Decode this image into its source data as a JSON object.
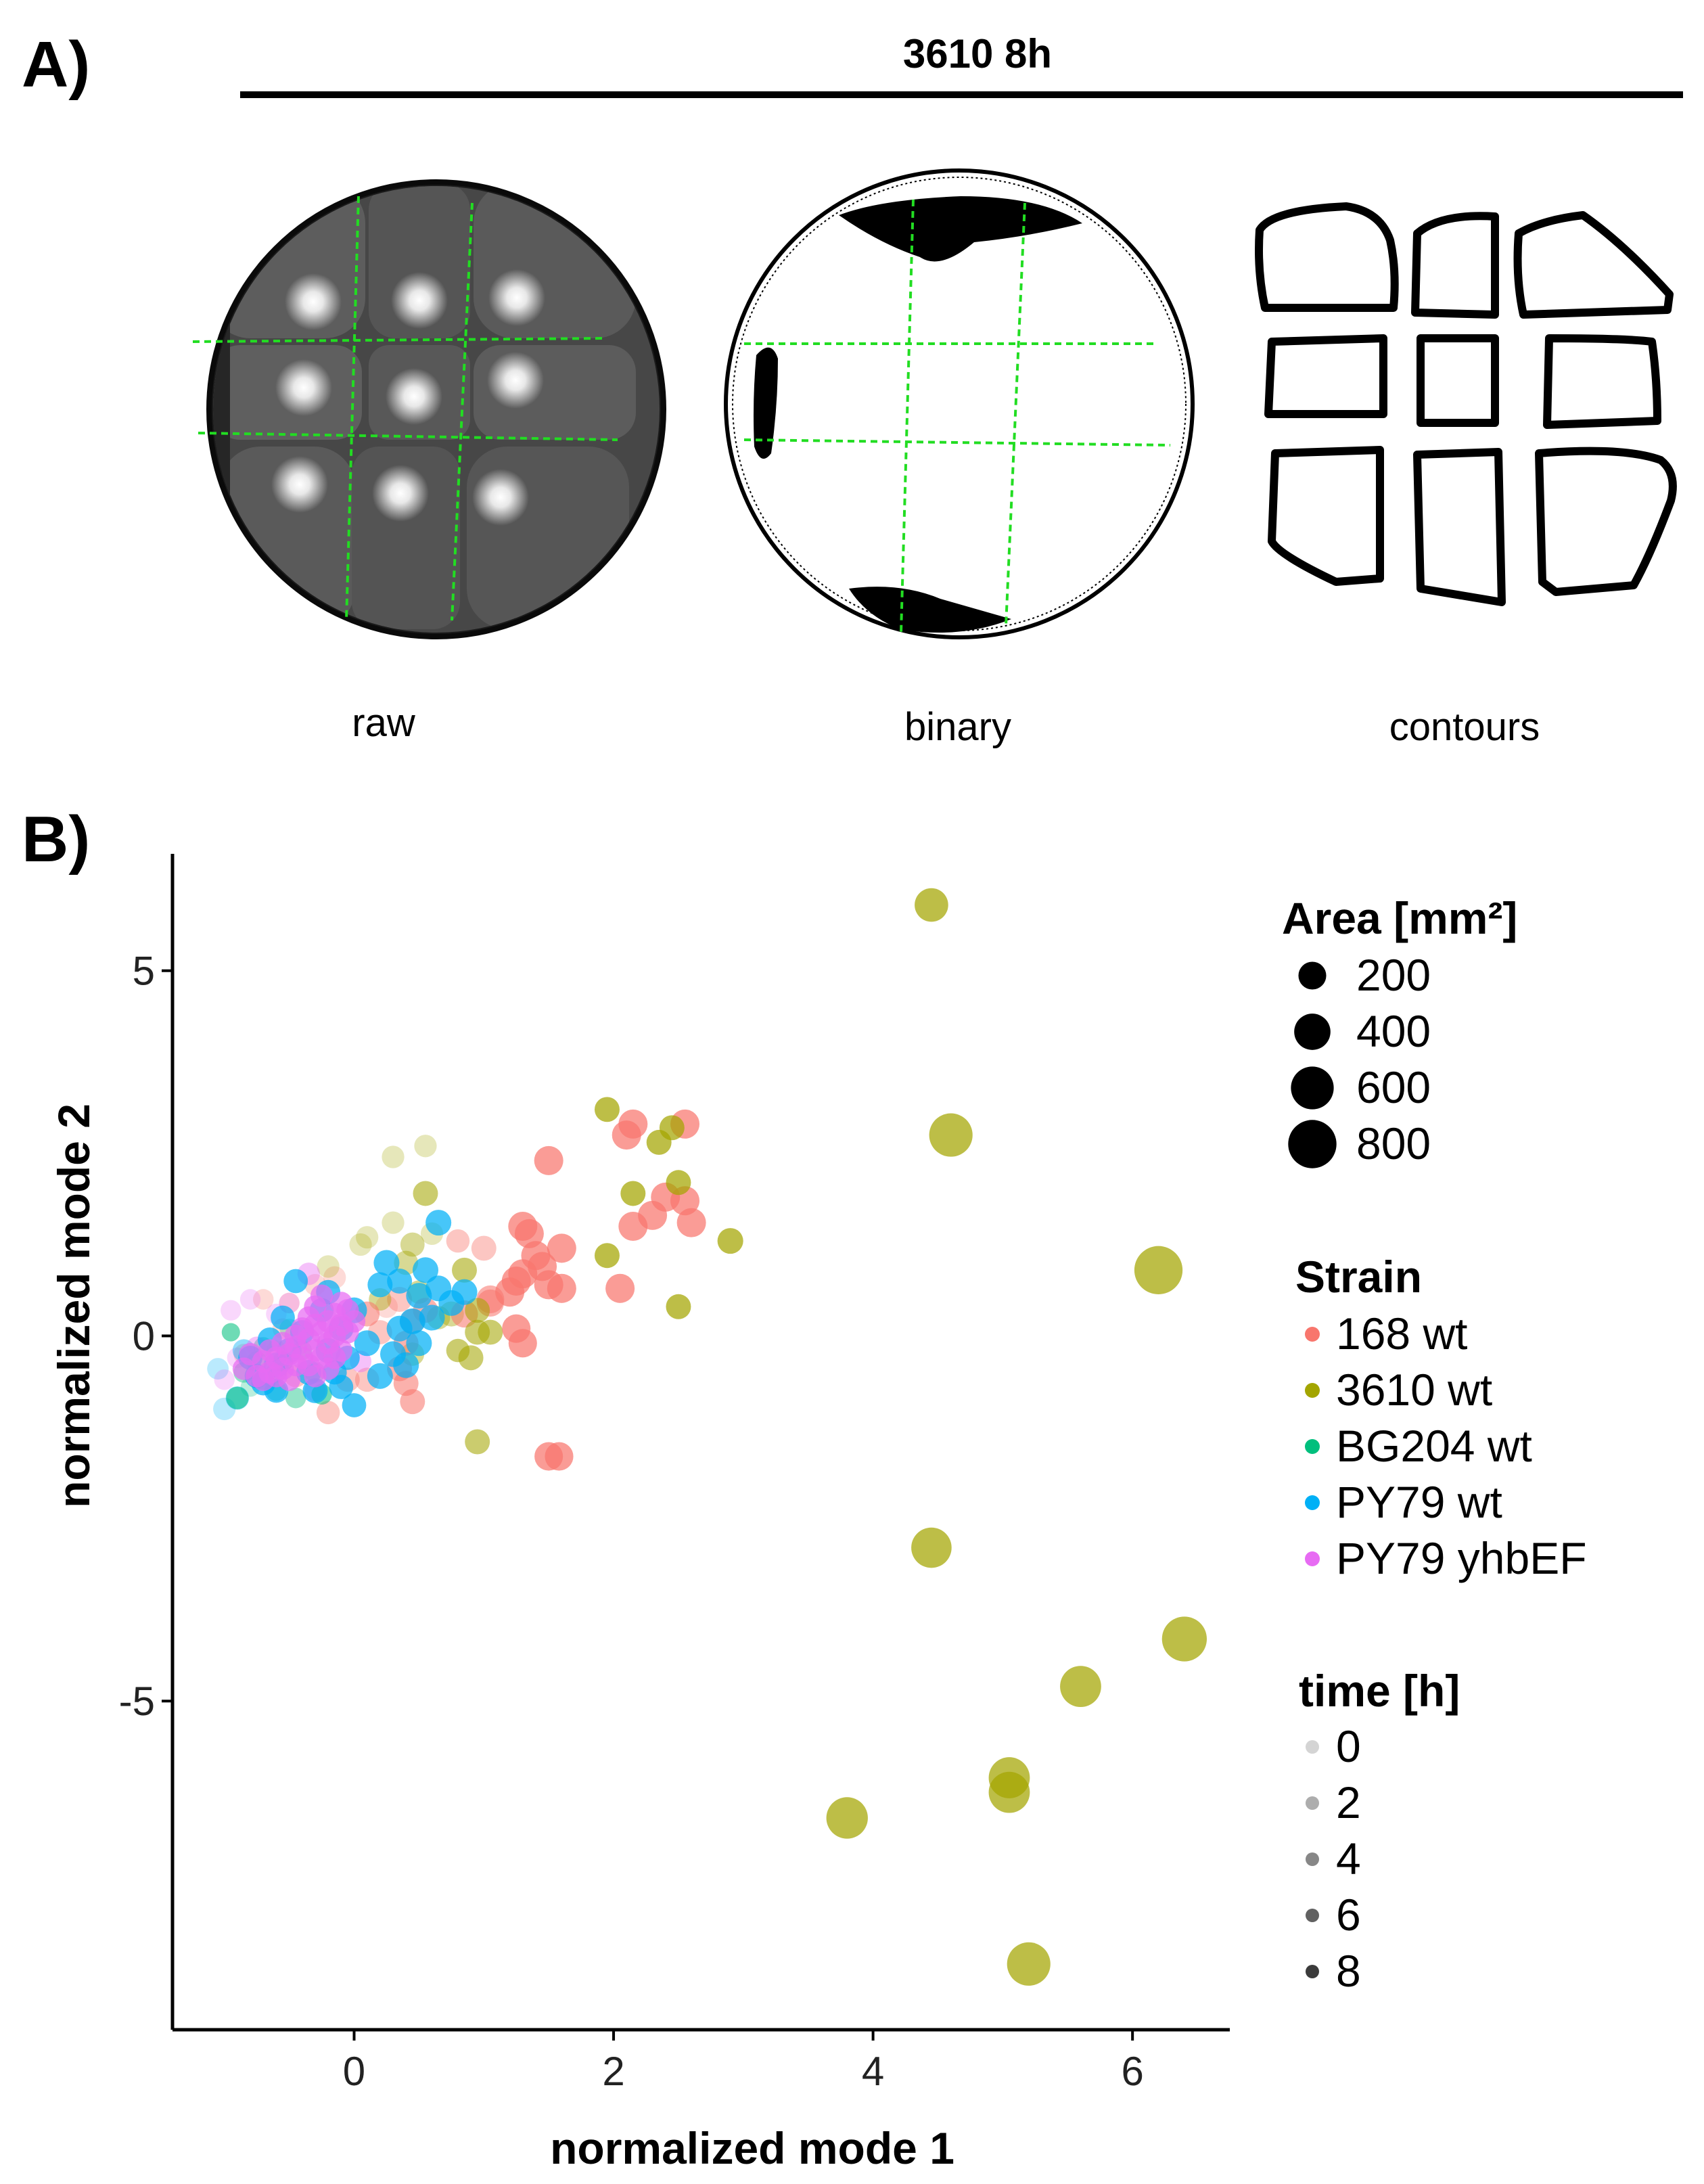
{
  "panel_a": {
    "letter": "A)",
    "header": "3610 8h",
    "image_labels": [
      "raw",
      "binary",
      "contours"
    ],
    "grid_line_color": "#22dd22"
  },
  "panel_b": {
    "letter": "B)"
  },
  "chart_data": {
    "type": "scatter",
    "xlabel": "normalized mode 1",
    "ylabel": "normalized mode 2",
    "xlim": [
      -1.4,
      6.75
    ],
    "ylim": [
      -9.5,
      6.6
    ],
    "xticks": [
      0,
      2,
      4,
      6
    ],
    "xtick_labels": [
      "0",
      "2",
      "4",
      "6"
    ],
    "yticks": [
      -5,
      0,
      5
    ],
    "ytick_labels": [
      "-5",
      "0",
      "5"
    ],
    "grid": false,
    "legend_position": "right",
    "legend_size": {
      "title": "Area [mm²]",
      "values": [
        200,
        400,
        600,
        800
      ],
      "labels": [
        "200",
        "400",
        "600",
        "800"
      ]
    },
    "legend_color": {
      "title": "Strain",
      "labels": [
        "168 wt",
        "3610 wt",
        "BG204 wt",
        "PY79 wt",
        "PY79 yhbEF"
      ],
      "colors": [
        "#F8766D",
        "#A3A500",
        "#00BF7D",
        "#00B0F6",
        "#E76BF3"
      ]
    },
    "legend_alpha": {
      "title": "time [h]",
      "values": [
        0,
        2,
        4,
        6,
        8
      ],
      "labels": [
        "0",
        "2",
        "4",
        "6",
        "8"
      ]
    },
    "series": [
      {
        "name": "168 wt",
        "color": "#F8766D",
        "points": [
          [
            2.1,
            2.75,
            170,
            8
          ],
          [
            2.15,
            2.9,
            170,
            8
          ],
          [
            2.55,
            2.9,
            170,
            8
          ],
          [
            1.5,
            2.4,
            170,
            8
          ],
          [
            2.4,
            1.9,
            170,
            8
          ],
          [
            2.55,
            1.85,
            170,
            8
          ],
          [
            2.3,
            1.65,
            170,
            8
          ],
          [
            2.6,
            1.55,
            170,
            8
          ],
          [
            2.15,
            1.5,
            170,
            8
          ],
          [
            1.35,
            1.4,
            170,
            8
          ],
          [
            1.3,
            1.5,
            170,
            8
          ],
          [
            1.6,
            1.2,
            170,
            8
          ],
          [
            1.4,
            1.1,
            170,
            8
          ],
          [
            1.45,
            0.95,
            170,
            8
          ],
          [
            1.3,
            0.85,
            170,
            8
          ],
          [
            1.5,
            0.7,
            170,
            8
          ],
          [
            1.6,
            0.65,
            170,
            8
          ],
          [
            1.25,
            0.75,
            170,
            8
          ],
          [
            1.2,
            0.6,
            170,
            8
          ],
          [
            2.05,
            0.65,
            170,
            8
          ],
          [
            1.25,
            0.1,
            160,
            8
          ],
          [
            1.3,
            -0.1,
            160,
            8
          ],
          [
            1.5,
            -1.65,
            160,
            8
          ],
          [
            1.58,
            -1.65,
            160,
            8
          ],
          [
            1.05,
            0.5,
            150,
            6
          ],
          [
            0.85,
            0.3,
            140,
            6
          ],
          [
            0.45,
            0.2,
            110,
            6
          ],
          [
            0.4,
            -0.1,
            110,
            6
          ],
          [
            0.35,
            -0.45,
            110,
            6
          ],
          [
            0.4,
            -0.65,
            110,
            6
          ],
          [
            0.45,
            -0.9,
            110,
            6
          ],
          [
            0.35,
            0.5,
            110,
            4
          ],
          [
            0.1,
            0.3,
            110,
            6
          ],
          [
            0.55,
            0.35,
            110,
            6
          ],
          [
            1.05,
            0.45,
            140,
            6
          ],
          [
            0.2,
            0.05,
            100,
            4
          ],
          [
            -0.2,
            -1.05,
            90,
            4
          ],
          [
            0.1,
            -0.6,
            100,
            4
          ],
          [
            -0.05,
            -0.6,
            100,
            4
          ],
          [
            -0.45,
            -0.55,
            80,
            4
          ],
          [
            -0.3,
            0.7,
            70,
            2
          ],
          [
            -0.5,
            0.45,
            60,
            2
          ],
          [
            -0.7,
            0.5,
            60,
            2
          ],
          [
            -0.85,
            -0.25,
            60,
            2
          ],
          [
            -0.6,
            -0.2,
            60,
            2
          ],
          [
            -0.15,
            0.8,
            80,
            2
          ],
          [
            0.25,
            0.4,
            80,
            2
          ],
          [
            0.8,
            1.3,
            90,
            4
          ],
          [
            1.0,
            1.2,
            110,
            4
          ],
          [
            -0.55,
            0.1,
            60,
            2
          ]
        ]
      },
      {
        "name": "3610 wt",
        "color": "#A3A500",
        "points": [
          [
            4.45,
            5.9,
            250,
            8
          ],
          [
            4.6,
            2.75,
            480,
            8
          ],
          [
            6.2,
            0.9,
            620,
            8
          ],
          [
            4.45,
            -2.9,
            400,
            8
          ],
          [
            6.4,
            -4.15,
            520,
            8
          ],
          [
            5.6,
            -4.8,
            420,
            8
          ],
          [
            5.05,
            -6.05,
            420,
            8
          ],
          [
            5.05,
            -6.25,
            420,
            8
          ],
          [
            3.8,
            -6.6,
            430,
            8
          ],
          [
            5.2,
            -8.6,
            480,
            8
          ],
          [
            1.95,
            3.1,
            110,
            8
          ],
          [
            2.35,
            2.65,
            110,
            8
          ],
          [
            2.45,
            2.85,
            110,
            8
          ],
          [
            2.5,
            2.1,
            110,
            8
          ],
          [
            2.15,
            1.95,
            110,
            8
          ],
          [
            2.9,
            1.3,
            120,
            8
          ],
          [
            1.95,
            1.1,
            110,
            8
          ],
          [
            2.5,
            0.4,
            110,
            8
          ],
          [
            0.95,
            -1.45,
            110,
            6
          ],
          [
            0.55,
            1.95,
            110,
            6
          ],
          [
            0.95,
            0.35,
            110,
            6
          ],
          [
            0.95,
            0.05,
            110,
            6
          ],
          [
            1.05,
            0.05,
            110,
            6
          ],
          [
            0.85,
            0.9,
            110,
            6
          ],
          [
            0.75,
            0.3,
            110,
            4
          ],
          [
            0.9,
            -0.3,
            110,
            6
          ],
          [
            0.45,
            1.25,
            100,
            4
          ],
          [
            0.4,
            1.0,
            100,
            4
          ],
          [
            0.3,
            2.45,
            80,
            2
          ],
          [
            0.55,
            2.6,
            80,
            2
          ],
          [
            0.3,
            1.55,
            80,
            2
          ],
          [
            0.1,
            1.35,
            80,
            2
          ],
          [
            0.6,
            1.4,
            80,
            2
          ],
          [
            0.2,
            0.5,
            80,
            4
          ],
          [
            0.5,
            0.6,
            90,
            4
          ],
          [
            0.05,
            1.25,
            80,
            2
          ],
          [
            -0.2,
            0.95,
            80,
            2
          ],
          [
            0.65,
            0.25,
            90,
            4
          ],
          [
            0.45,
            -0.25,
            90,
            4
          ],
          [
            0.8,
            -0.2,
            90,
            6
          ]
        ]
      },
      {
        "name": "BG204 wt",
        "color": "#00BF7D",
        "points": [
          [
            -0.9,
            -0.85,
            80,
            6
          ],
          [
            -0.95,
            0.05,
            40,
            6
          ],
          [
            -0.75,
            -0.35,
            60,
            4
          ],
          [
            -0.6,
            -0.75,
            60,
            4
          ],
          [
            -0.85,
            -0.5,
            60,
            4
          ],
          [
            -0.7,
            -0.15,
            50,
            4
          ],
          [
            -0.55,
            -0.35,
            60,
            6
          ],
          [
            -0.45,
            -0.85,
            60,
            4
          ],
          [
            -0.3,
            -0.5,
            60,
            4
          ],
          [
            -0.7,
            -0.6,
            60,
            6
          ],
          [
            -0.4,
            -0.2,
            50,
            4
          ],
          [
            -0.25,
            -0.8,
            60,
            6
          ],
          [
            -0.6,
            -0.5,
            60,
            4
          ],
          [
            -0.8,
            -0.7,
            50,
            2
          ],
          [
            -0.5,
            0.1,
            50,
            2
          ]
        ]
      },
      {
        "name": "PY79 wt",
        "color": "#00B0F6",
        "points": [
          [
            0.65,
            1.55,
            120,
            8
          ],
          [
            0.25,
            1.0,
            120,
            8
          ],
          [
            0.55,
            0.9,
            120,
            8
          ],
          [
            0.65,
            0.65,
            120,
            8
          ],
          [
            0.75,
            0.45,
            120,
            8
          ],
          [
            0.85,
            0.6,
            120,
            8
          ],
          [
            0.5,
            0.55,
            120,
            8
          ],
          [
            0.45,
            0.2,
            120,
            8
          ],
          [
            0.6,
            0.25,
            120,
            8
          ],
          [
            0.35,
            0.1,
            120,
            8
          ],
          [
            0.3,
            -0.25,
            120,
            8
          ],
          [
            0.5,
            -0.1,
            120,
            8
          ],
          [
            0.4,
            -0.4,
            120,
            8
          ],
          [
            0.2,
            -0.55,
            120,
            8
          ],
          [
            0.1,
            -0.1,
            120,
            8
          ],
          [
            0.0,
            0.35,
            120,
            8
          ],
          [
            -0.1,
            0.1,
            110,
            8
          ],
          [
            -0.2,
            -0.2,
            110,
            8
          ],
          [
            -0.35,
            -0.5,
            110,
            8
          ],
          [
            -0.5,
            -0.2,
            110,
            8
          ],
          [
            -0.6,
            -0.4,
            110,
            8
          ],
          [
            -0.3,
            -0.75,
            110,
            8
          ],
          [
            -0.45,
            0.75,
            100,
            8
          ],
          [
            -0.2,
            0.6,
            100,
            8
          ],
          [
            -0.55,
            0.25,
            100,
            8
          ],
          [
            -0.15,
            -0.5,
            100,
            8
          ],
          [
            0.0,
            -0.95,
            100,
            8
          ],
          [
            -0.7,
            -0.65,
            100,
            8
          ],
          [
            -0.8,
            -0.3,
            100,
            8
          ],
          [
            -0.05,
            -0.3,
            100,
            8
          ],
          [
            -0.65,
            -0.05,
            100,
            8
          ],
          [
            -0.25,
            0.35,
            100,
            8
          ],
          [
            -0.4,
            0.05,
            100,
            8
          ],
          [
            -0.75,
            -0.55,
            100,
            8
          ],
          [
            -0.9,
            -0.85,
            90,
            4
          ],
          [
            -1.0,
            -1.0,
            80,
            2
          ],
          [
            -0.85,
            -0.2,
            80,
            4
          ],
          [
            -1.05,
            -0.45,
            70,
            2
          ],
          [
            0.2,
            0.7,
            110,
            8
          ],
          [
            0.35,
            0.75,
            110,
            8
          ],
          [
            -0.6,
            -0.75,
            100,
            8
          ],
          [
            -0.1,
            -0.7,
            100,
            8
          ]
        ]
      },
      {
        "name": "PY79 yhbEF",
        "color": "#E76BF3",
        "points": [
          [
            -0.75,
            -0.55,
            80,
            8
          ],
          [
            -0.7,
            -0.35,
            80,
            8
          ],
          [
            -0.65,
            -0.5,
            80,
            8
          ],
          [
            -0.6,
            -0.3,
            80,
            8
          ],
          [
            -0.55,
            -0.45,
            80,
            8
          ],
          [
            -0.5,
            -0.25,
            80,
            8
          ],
          [
            -0.45,
            -0.4,
            80,
            8
          ],
          [
            -0.45,
            -0.15,
            80,
            8
          ],
          [
            -0.4,
            -0.3,
            80,
            8
          ],
          [
            -0.35,
            -0.05,
            80,
            8
          ],
          [
            -0.35,
            -0.4,
            80,
            8
          ],
          [
            -0.3,
            -0.2,
            80,
            8
          ],
          [
            -0.3,
            0.15,
            80,
            8
          ],
          [
            -0.25,
            0.05,
            80,
            8
          ],
          [
            -0.25,
            -0.3,
            80,
            8
          ],
          [
            -0.2,
            0.2,
            80,
            8
          ],
          [
            -0.2,
            -0.1,
            80,
            8
          ],
          [
            -0.15,
            0.0,
            80,
            8
          ],
          [
            -0.15,
            0.3,
            80,
            8
          ],
          [
            -0.1,
            0.15,
            80,
            8
          ],
          [
            -0.1,
            -0.2,
            80,
            8
          ],
          [
            -0.05,
            0.05,
            80,
            8
          ],
          [
            -0.05,
            0.35,
            80,
            8
          ],
          [
            0.0,
            0.2,
            80,
            8
          ],
          [
            -0.6,
            -0.55,
            80,
            8
          ],
          [
            -0.85,
            -0.45,
            80,
            8
          ],
          [
            -0.8,
            -0.25,
            80,
            8
          ],
          [
            -0.7,
            -0.6,
            80,
            8
          ],
          [
            -0.5,
            -0.6,
            80,
            8
          ],
          [
            -0.4,
            0.1,
            80,
            8
          ],
          [
            -0.3,
            0.4,
            80,
            8
          ],
          [
            -0.25,
            0.55,
            80,
            8
          ],
          [
            -0.35,
            0.25,
            80,
            8
          ],
          [
            -0.55,
            -0.1,
            80,
            8
          ],
          [
            -0.65,
            -0.2,
            80,
            8
          ],
          [
            -0.45,
            0.0,
            80,
            8
          ],
          [
            -0.3,
            -0.55,
            80,
            8
          ],
          [
            -0.2,
            -0.45,
            80,
            8
          ],
          [
            -0.15,
            -0.3,
            80,
            8
          ],
          [
            -0.1,
            0.45,
            80,
            8
          ],
          [
            -0.75,
            -0.15,
            60,
            4
          ],
          [
            -0.9,
            -0.3,
            60,
            2
          ],
          [
            -0.5,
            0.45,
            60,
            2
          ],
          [
            -0.6,
            0.3,
            60,
            2
          ],
          [
            -0.35,
            0.85,
            80,
            4
          ],
          [
            -0.95,
            0.35,
            60,
            2
          ],
          [
            -0.8,
            0.5,
            60,
            2
          ],
          [
            -0.3,
            -0.75,
            70,
            4
          ],
          [
            0.05,
            -0.35,
            70,
            4
          ],
          [
            -1.0,
            -0.6,
            60,
            2
          ]
        ]
      }
    ]
  }
}
